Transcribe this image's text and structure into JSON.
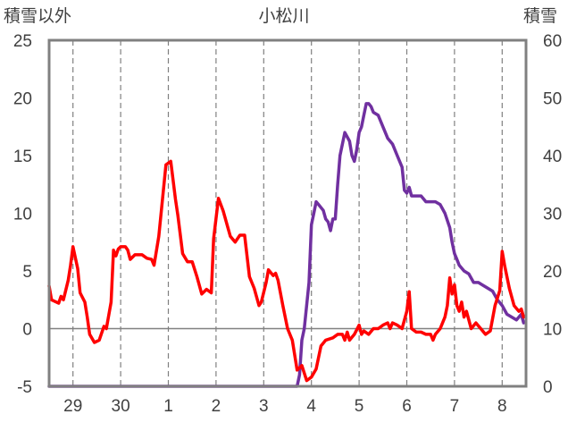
{
  "chart_data": {
    "type": "line",
    "title": "小松川",
    "left_axis_label": "積雪以外",
    "right_axis_label": "積雪",
    "x_ticks": [
      "29",
      "30",
      "1",
      "2",
      "3",
      "4",
      "5",
      "6",
      "7",
      "8"
    ],
    "x_range": [
      28.5,
      38.5
    ],
    "left_ylim": [
      -5,
      25
    ],
    "left_yticks": [
      "25",
      "20",
      "15",
      "10",
      "5",
      "0",
      "-5"
    ],
    "right_ylim": [
      0,
      60
    ],
    "right_yticks": [
      "60",
      "50",
      "40",
      "30",
      "20",
      "10",
      "0"
    ],
    "grid": "dashed vertical lines at each day; horizontal line at 0",
    "series": [
      {
        "axis": "left",
        "color": "#ff0000",
        "points": [
          [
            28.5,
            3.7
          ],
          [
            28.55,
            2.5
          ],
          [
            28.7,
            2.2
          ],
          [
            28.75,
            2.8
          ],
          [
            28.8,
            2.5
          ],
          [
            28.9,
            4.2
          ],
          [
            28.95,
            5.5
          ],
          [
            29.0,
            7.1
          ],
          [
            29.1,
            5.2
          ],
          [
            29.15,
            3.1
          ],
          [
            29.25,
            2.3
          ],
          [
            29.3,
            1.0
          ],
          [
            29.35,
            -0.5
          ],
          [
            29.45,
            -1.2
          ],
          [
            29.55,
            -1.0
          ],
          [
            29.65,
            0.2
          ],
          [
            29.7,
            0.0
          ],
          [
            29.8,
            2.3
          ],
          [
            29.85,
            6.8
          ],
          [
            29.9,
            6.3
          ],
          [
            29.95,
            6.9
          ],
          [
            30.0,
            7.1
          ],
          [
            30.1,
            7.1
          ],
          [
            30.15,
            6.8
          ],
          [
            30.2,
            6.0
          ],
          [
            30.3,
            6.4
          ],
          [
            30.45,
            6.4
          ],
          [
            30.55,
            6.1
          ],
          [
            30.65,
            6.0
          ],
          [
            30.7,
            5.5
          ],
          [
            30.8,
            8.0
          ],
          [
            30.95,
            14.2
          ],
          [
            31.05,
            14.5
          ],
          [
            31.15,
            11.2
          ],
          [
            31.2,
            9.8
          ],
          [
            31.3,
            6.5
          ],
          [
            31.4,
            5.8
          ],
          [
            31.5,
            5.8
          ],
          [
            31.6,
            4.5
          ],
          [
            31.7,
            3.0
          ],
          [
            31.8,
            3.4
          ],
          [
            31.9,
            3.1
          ],
          [
            31.95,
            7.8
          ],
          [
            32.05,
            11.3
          ],
          [
            32.15,
            10.2
          ],
          [
            32.3,
            8.0
          ],
          [
            32.4,
            7.5
          ],
          [
            32.5,
            8.1
          ],
          [
            32.6,
            8.1
          ],
          [
            32.7,
            4.5
          ],
          [
            32.8,
            3.5
          ],
          [
            32.9,
            2.0
          ],
          [
            32.95,
            2.3
          ],
          [
            33.05,
            4.0
          ],
          [
            33.1,
            5.1
          ],
          [
            33.2,
            4.6
          ],
          [
            33.25,
            4.8
          ],
          [
            33.3,
            4.2
          ],
          [
            33.4,
            2.0
          ],
          [
            33.5,
            0.0
          ],
          [
            33.6,
            -1.0
          ],
          [
            33.7,
            -3.6
          ],
          [
            33.8,
            -3.2
          ],
          [
            33.9,
            -4.5
          ],
          [
            34.0,
            -4.2
          ],
          [
            34.1,
            -3.5
          ],
          [
            34.2,
            -1.5
          ],
          [
            34.3,
            -1.0
          ],
          [
            34.45,
            -0.8
          ],
          [
            34.55,
            -0.5
          ],
          [
            34.65,
            -0.5
          ],
          [
            34.7,
            -1.0
          ],
          [
            34.75,
            -0.3
          ],
          [
            34.8,
            -1.0
          ],
          [
            34.9,
            -0.5
          ],
          [
            35.0,
            0.3
          ],
          [
            35.05,
            -0.5
          ],
          [
            35.1,
            -0.2
          ],
          [
            35.2,
            -0.5
          ],
          [
            35.3,
            0.0
          ],
          [
            35.4,
            0.0
          ],
          [
            35.5,
            0.3
          ],
          [
            35.6,
            0.5
          ],
          [
            35.65,
            0.0
          ],
          [
            35.7,
            0.5
          ],
          [
            35.8,
            0.3
          ],
          [
            35.9,
            0.0
          ],
          [
            36.0,
            1.5
          ],
          [
            36.05,
            3.2
          ],
          [
            36.1,
            0.0
          ],
          [
            36.2,
            -0.3
          ],
          [
            36.3,
            -0.3
          ],
          [
            36.4,
            -0.5
          ],
          [
            36.5,
            -0.5
          ],
          [
            36.55,
            -1.0
          ],
          [
            36.6,
            -0.5
          ],
          [
            36.7,
            0.0
          ],
          [
            36.8,
            1.0
          ],
          [
            36.85,
            2.0
          ],
          [
            36.9,
            4.4
          ],
          [
            36.95,
            3.0
          ],
          [
            37.0,
            3.8
          ],
          [
            37.05,
            2.0
          ],
          [
            37.1,
            1.5
          ],
          [
            37.15,
            2.3
          ],
          [
            37.2,
            1.0
          ],
          [
            37.25,
            1.5
          ],
          [
            37.35,
            0.0
          ],
          [
            37.45,
            0.5
          ],
          [
            37.55,
            0.0
          ],
          [
            37.65,
            -0.5
          ],
          [
            37.75,
            -0.2
          ],
          [
            37.85,
            2.0
          ],
          [
            37.95,
            3.3
          ],
          [
            38.0,
            6.7
          ],
          [
            38.05,
            5.5
          ],
          [
            38.15,
            3.5
          ],
          [
            38.25,
            2.0
          ],
          [
            38.35,
            1.5
          ],
          [
            38.4,
            1.7
          ],
          [
            38.45,
            1.0
          ]
        ]
      },
      {
        "axis": "right",
        "color": "#7030a0",
        "points": [
          [
            28.5,
            0.0
          ],
          [
            33.7,
            0.0
          ],
          [
            33.75,
            2.0
          ],
          [
            33.8,
            8.0
          ],
          [
            33.85,
            10.0
          ],
          [
            33.95,
            18.0
          ],
          [
            34.0,
            28.0
          ],
          [
            34.05,
            30.0
          ],
          [
            34.1,
            32.0
          ],
          [
            34.15,
            31.5
          ],
          [
            34.25,
            30.5
          ],
          [
            34.3,
            29.0
          ],
          [
            34.35,
            28.5
          ],
          [
            34.4,
            27.0
          ],
          [
            34.45,
            29.0
          ],
          [
            34.5,
            29.0
          ],
          [
            34.55,
            35.0
          ],
          [
            34.6,
            40.0
          ],
          [
            34.65,
            42.0
          ],
          [
            34.7,
            44.0
          ],
          [
            34.8,
            42.5
          ],
          [
            34.85,
            40.0
          ],
          [
            34.9,
            39.0
          ],
          [
            34.95,
            41.0
          ],
          [
            35.0,
            44.0
          ],
          [
            35.05,
            45.0
          ],
          [
            35.1,
            47.0
          ],
          [
            35.15,
            49.0
          ],
          [
            35.2,
            49.0
          ],
          [
            35.25,
            48.5
          ],
          [
            35.3,
            47.5
          ],
          [
            35.4,
            47.0
          ],
          [
            35.5,
            45.0
          ],
          [
            35.6,
            43.0
          ],
          [
            35.7,
            42.0
          ],
          [
            35.8,
            40.0
          ],
          [
            35.9,
            38.0
          ],
          [
            35.95,
            34.0
          ],
          [
            36.0,
            33.5
          ],
          [
            36.05,
            34.5
          ],
          [
            36.1,
            33.0
          ],
          [
            36.2,
            33.0
          ],
          [
            36.3,
            33.0
          ],
          [
            36.4,
            32.0
          ],
          [
            36.5,
            32.0
          ],
          [
            36.6,
            32.0
          ],
          [
            36.7,
            31.5
          ],
          [
            36.8,
            30.0
          ],
          [
            36.9,
            27.5
          ],
          [
            36.95,
            25.0
          ],
          [
            37.0,
            23.0
          ],
          [
            37.05,
            22.0
          ],
          [
            37.1,
            21.0
          ],
          [
            37.2,
            20.0
          ],
          [
            37.3,
            19.5
          ],
          [
            37.4,
            18.0
          ],
          [
            37.5,
            18.0
          ],
          [
            37.6,
            17.5
          ],
          [
            37.7,
            17.0
          ],
          [
            37.8,
            16.5
          ],
          [
            37.9,
            15.0
          ],
          [
            38.0,
            14.0
          ],
          [
            38.1,
            12.5
          ],
          [
            38.2,
            12.0
          ],
          [
            38.3,
            11.5
          ],
          [
            38.35,
            12.0
          ],
          [
            38.4,
            12.5
          ],
          [
            38.45,
            11.0
          ]
        ]
      }
    ]
  }
}
